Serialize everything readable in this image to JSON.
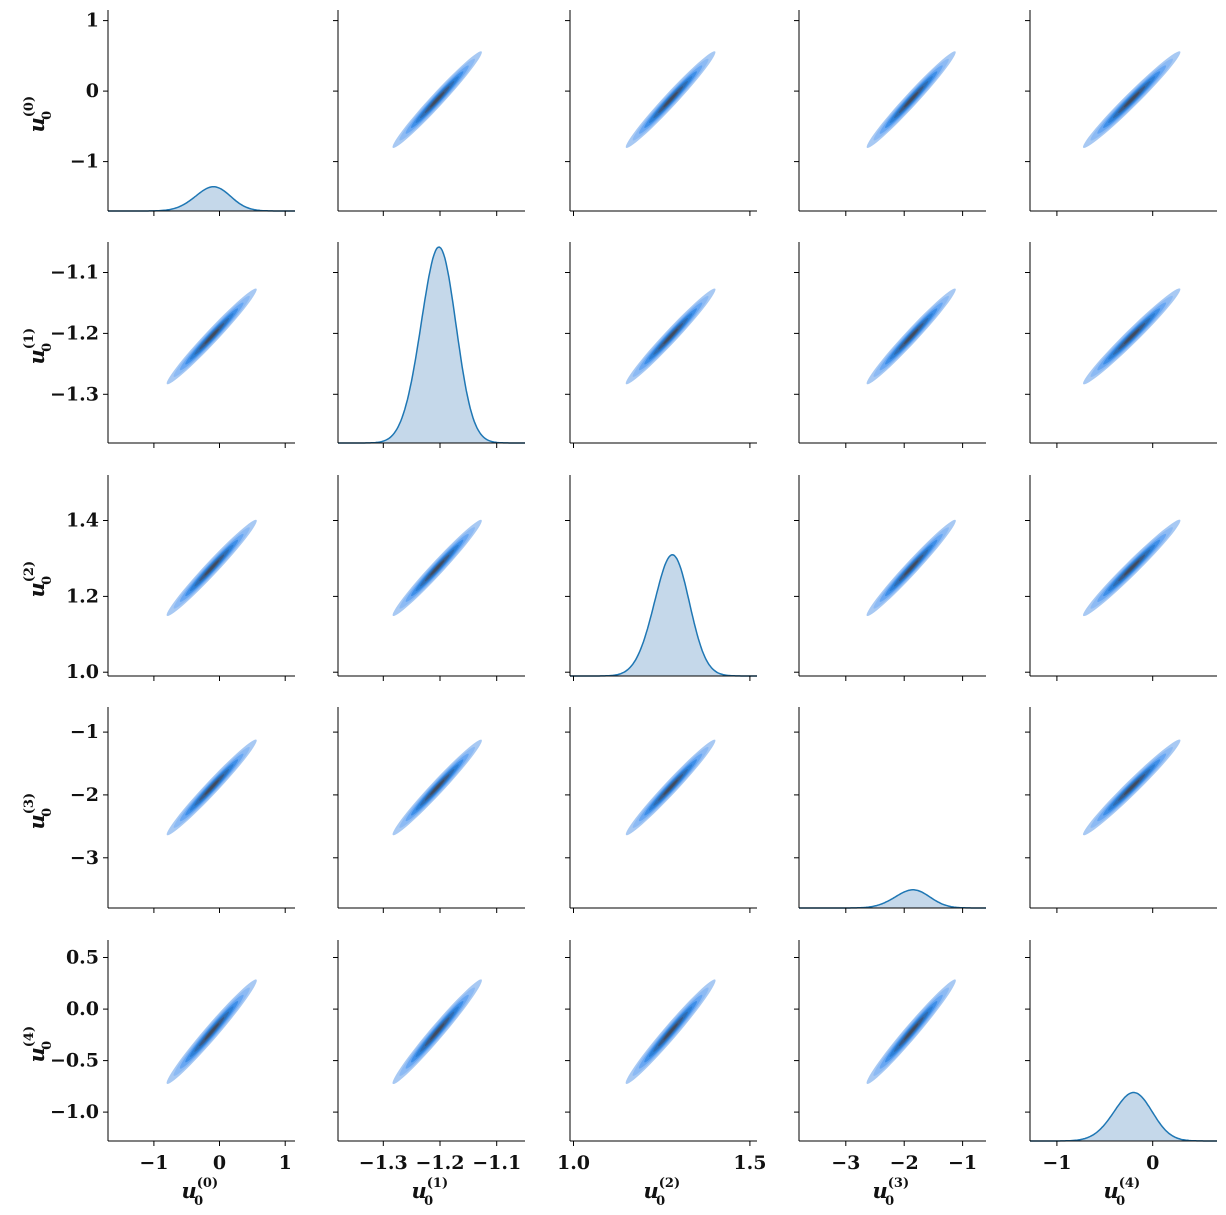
{
  "chart_data": {
    "type": "pairplot",
    "variables": [
      {
        "symbol": "u",
        "subscript": "0",
        "superscript": "(0)",
        "range": [
          -1.7,
          1.15
        ],
        "ticks": [
          1,
          0,
          -1
        ],
        "tick_labels": [
          "1",
          "0",
          "−1"
        ],
        "mean": -0.12,
        "sd": 0.27
      },
      {
        "symbol": "u",
        "subscript": "0",
        "superscript": "(1)",
        "range": [
          -1.38,
          -1.05
        ],
        "ticks": [
          -1.1,
          -1.2,
          -1.3
        ],
        "tick_labels": [
          "−1.1",
          "−1.2",
          "−1.3"
        ],
        "mean": -1.205,
        "sd": 0.031
      },
      {
        "symbol": "u",
        "subscript": "0",
        "superscript": "(2)",
        "range": [
          0.99,
          1.52
        ],
        "ticks": [
          1.4,
          1.2,
          1.0
        ],
        "tick_labels": [
          "1.4",
          "1.2",
          "1.0"
        ],
        "x_ticks": [
          1.0,
          1.5
        ],
        "x_tick_labels": [
          "1.0",
          "1.5"
        ],
        "mean": 1.275,
        "sd": 0.05
      },
      {
        "symbol": "u",
        "subscript": "0",
        "superscript": "(3)",
        "range": [
          -3.8,
          -0.6
        ],
        "ticks": [
          -1,
          -2,
          -3
        ],
        "tick_labels": [
          "−1",
          "−2",
          "−3"
        ],
        "mean": -1.88,
        "sd": 0.3
      },
      {
        "symbol": "u",
        "subscript": "0",
        "superscript": "(4)",
        "range": [
          -1.28,
          0.67
        ],
        "ticks": [
          0.5,
          0.0,
          -0.5,
          -1.0
        ],
        "tick_labels": [
          "0.5",
          "0.0",
          "−0.5",
          "−1.0"
        ],
        "x_ticks": [
          -1,
          0
        ],
        "x_tick_labels": [
          "−1",
          "0"
        ],
        "mean": -0.22,
        "sd": 0.2
      }
    ],
    "diagonal": "kde",
    "off_diagonal": "kde_filled",
    "correlation": 0.985,
    "diagonal_peak_height_fraction": [
      0.12,
      0.97,
      0.6,
      0.09,
      0.24
    ],
    "colors": {
      "kde_line": "#1f77b4",
      "kde_fill": "#c5d8ea",
      "contour_levels": [
        "#a8c9f3",
        "#8cbaf4",
        "#67a6f2",
        "#3f8fe8",
        "#2d7fd6",
        "#2f6db3",
        "#3a5a85",
        "#404b5e"
      ],
      "axis": "#000000"
    },
    "grid": false,
    "legend": "none"
  }
}
